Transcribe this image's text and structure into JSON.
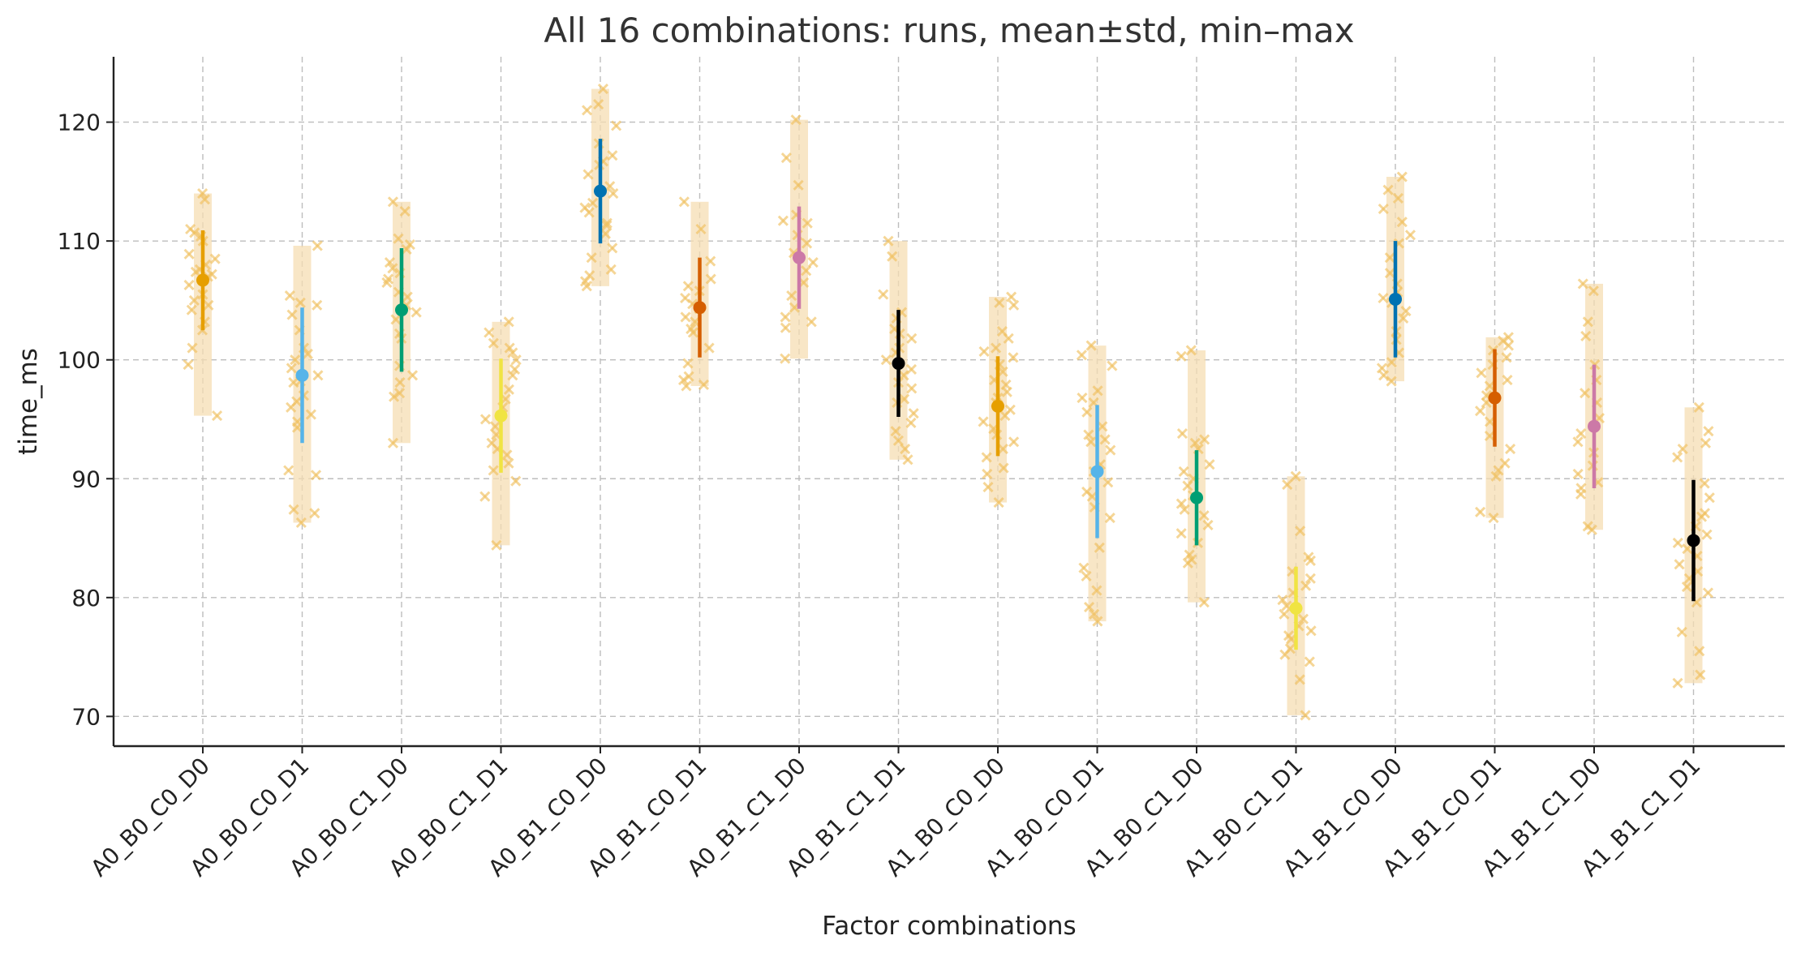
{
  "chart_data": {
    "type": "scatter",
    "title": "All 16 combinations: runs, mean±std, min–max",
    "xlabel": "Factor combinations",
    "ylabel": "time_ms",
    "ylim": [
      67.5,
      125.5
    ],
    "yticks": [
      70,
      80,
      90,
      100,
      110,
      120
    ],
    "grid": true,
    "run_color": "#f0c060",
    "range_color": "#f5deb3",
    "categories": [
      "A0_B0_C0_D0",
      "A0_B0_C0_D1",
      "A0_B0_C1_D0",
      "A0_B0_C1_D1",
      "A0_B1_C0_D0",
      "A0_B1_C0_D1",
      "A0_B1_C1_D0",
      "A0_B1_C1_D1",
      "A1_B0_C0_D0",
      "A1_B0_C0_D1",
      "A1_B0_C1_D0",
      "A1_B0_C1_D1",
      "A1_B1_C0_D0",
      "A1_B1_C0_D1",
      "A1_B1_C1_D0",
      "A1_B1_C1_D1"
    ],
    "groups": [
      {
        "mean": 106.7,
        "std": 4.2,
        "min": 95.3,
        "max": 114.0,
        "color": "#e69f00",
        "runs": [
          114,
          113.5,
          111,
          110.7,
          110.4,
          110,
          108.9,
          108.5,
          108,
          107.6,
          107.4,
          107.2,
          107,
          106.3,
          105.5,
          105,
          104.6,
          104.2,
          103.2,
          102.5,
          101,
          99.6,
          95.3
        ]
      },
      {
        "mean": 98.7,
        "std": 5.7,
        "min": 86.3,
        "max": 109.6,
        "color": "#56b4e9",
        "runs": [
          109.6,
          105.4,
          104.8,
          104.6,
          103.8,
          102.5,
          101,
          100.5,
          100,
          99.3,
          98.7,
          98.2,
          98.1,
          97,
          96.5,
          96,
          95.4,
          94.8,
          94.3,
          90.7,
          90.3,
          87.4,
          87.1,
          86.3
        ]
      },
      {
        "mean": 104.2,
        "std": 5.2,
        "min": 93.0,
        "max": 113.3,
        "color": "#009e73",
        "runs": [
          113.3,
          112.5,
          110.2,
          109.7,
          109.3,
          108.2,
          107.7,
          107.3,
          106.8,
          106.5,
          105.7,
          105.3,
          104.6,
          104,
          103.4,
          102.2,
          101.8,
          99.5,
          98.7,
          98.1,
          97.2,
          96.9,
          93
        ]
      },
      {
        "mean": 95.3,
        "std": 4.8,
        "min": 84.4,
        "max": 103.2,
        "color": "#f0e442",
        "runs": [
          103.2,
          102.3,
          101.4,
          101,
          100.6,
          100,
          99.2,
          98.7,
          97.5,
          96.7,
          96,
          95,
          94.4,
          93.7,
          93,
          92.5,
          92,
          91.3,
          90.7,
          89.8,
          88.5,
          84.4
        ]
      },
      {
        "mean": 114.2,
        "std": 4.4,
        "min": 106.2,
        "max": 122.8,
        "color": "#0072b2",
        "runs": [
          122.8,
          121.5,
          121,
          119.7,
          118.2,
          117.2,
          116.7,
          116.4,
          115.6,
          114.6,
          114,
          113.2,
          112.8,
          112.4,
          111.5,
          111.3,
          110.6,
          109.4,
          108.6,
          107.6,
          107.1,
          106.6,
          106.2
        ]
      },
      {
        "mean": 104.4,
        "std": 4.2,
        "min": 97.8,
        "max": 113.3,
        "color": "#d55e00",
        "runs": [
          113.3,
          111,
          108.3,
          106.8,
          106.2,
          105.8,
          105.2,
          104.7,
          104.3,
          103.6,
          103.2,
          102.6,
          102.3,
          101,
          99.7,
          98.6,
          98.3,
          97.9,
          97.8
        ]
      },
      {
        "mean": 108.6,
        "std": 4.3,
        "min": 100.1,
        "max": 120.2,
        "color": "#cc79a7",
        "runs": [
          120.2,
          117,
          114.7,
          112.2,
          111.7,
          111.5,
          110.5,
          109.8,
          109,
          108.2,
          107.5,
          106.5,
          105.4,
          104.4,
          103.6,
          103.2,
          102.7,
          100.1
        ]
      },
      {
        "mean": 99.7,
        "std": 4.5,
        "min": 91.6,
        "max": 110.0,
        "color": "#000000",
        "runs": [
          110,
          108.7,
          105.5,
          104,
          103.5,
          102.6,
          102.2,
          101.8,
          101,
          100.6,
          100,
          99.2,
          98.7,
          98.1,
          97.6,
          96.7,
          96.4,
          95.5,
          94.7,
          94,
          93.2,
          92.5,
          91.6
        ]
      },
      {
        "mean": 96.1,
        "std": 4.2,
        "min": 88.0,
        "max": 105.3,
        "color": "#e69f00",
        "runs": [
          105.3,
          104.8,
          104.6,
          102.4,
          101.8,
          101,
          100.7,
          100.2,
          99.6,
          99,
          98.3,
          97.9,
          97.3,
          96.8,
          96.4,
          95.8,
          95.3,
          94.8,
          94.2,
          93.7,
          93.1,
          92.5,
          91.8,
          90.9,
          90.4,
          89.3,
          88
        ]
      },
      {
        "mean": 90.6,
        "std": 5.6,
        "min": 78.0,
        "max": 101.2,
        "color": "#56b4e9",
        "runs": [
          101.2,
          100.4,
          99.5,
          97.4,
          96.8,
          96.4,
          95.6,
          94.4,
          93.7,
          93.3,
          93.1,
          92.4,
          91.2,
          90.6,
          89.7,
          88.9,
          88.5,
          87.6,
          86.7,
          84.2,
          82.5,
          81.8,
          80.6,
          79.2,
          78.6,
          78
        ]
      },
      {
        "mean": 88.4,
        "std": 4.0,
        "min": 79.6,
        "max": 100.8,
        "color": "#009e73",
        "runs": [
          100.8,
          100.3,
          93.8,
          93.3,
          93,
          92.5,
          91.2,
          90.6,
          90,
          89.4,
          88.6,
          87.9,
          87.4,
          86.9,
          86.1,
          85.4,
          84.6,
          83.6,
          83.2,
          82.9,
          79.6
        ]
      },
      {
        "mean": 79.1,
        "std": 3.5,
        "min": 70.1,
        "max": 90.2,
        "color": "#f0e442",
        "runs": [
          90.2,
          89.5,
          85.6,
          83.4,
          83.1,
          82.2,
          81.6,
          81,
          80.4,
          79.8,
          79.3,
          78.6,
          78.2,
          77.6,
          77.2,
          76.8,
          76.5,
          75.7,
          75.2,
          74.6,
          73.1,
          70.1
        ]
      },
      {
        "mean": 105.1,
        "std": 4.9,
        "min": 98.2,
        "max": 115.4,
        "color": "#0072b2",
        "runs": [
          115.4,
          114.3,
          113.6,
          112.7,
          111.6,
          110.5,
          109.8,
          108.6,
          107.3,
          106.4,
          105.7,
          105.2,
          104.8,
          104.1,
          103.5,
          102.4,
          101.7,
          100.6,
          99.8,
          99.3,
          98.7,
          98.2
        ]
      },
      {
        "mean": 96.8,
        "std": 4.1,
        "min": 86.7,
        "max": 101.9,
        "color": "#d55e00",
        "runs": [
          101.9,
          101.6,
          101.2,
          100.8,
          100.2,
          99.6,
          98.9,
          98.3,
          97.8,
          97,
          96.4,
          95.7,
          94.8,
          93.6,
          92.5,
          91.3,
          90.7,
          90.2,
          87.2,
          86.7
        ]
      },
      {
        "mean": 94.4,
        "std": 5.2,
        "min": 85.7,
        "max": 106.4,
        "color": "#cc79a7",
        "runs": [
          106.4,
          105.8,
          103.2,
          102,
          99.6,
          98.3,
          97.2,
          96.4,
          95.1,
          94.4,
          93.8,
          93.1,
          92.2,
          91.1,
          90.4,
          89.7,
          89.2,
          88.7,
          86,
          85.7
        ]
      },
      {
        "mean": 84.8,
        "std": 5.1,
        "min": 72.8,
        "max": 96.0,
        "color": "#000000",
        "runs": [
          96,
          94,
          93,
          92.5,
          91.8,
          89.6,
          88.4,
          87.1,
          86.8,
          86,
          85.3,
          84.6,
          84.1,
          83.5,
          82.8,
          82.2,
          81.6,
          80.9,
          80.4,
          79.6,
          77.1,
          75.5,
          73.5,
          72.8
        ]
      }
    ]
  }
}
